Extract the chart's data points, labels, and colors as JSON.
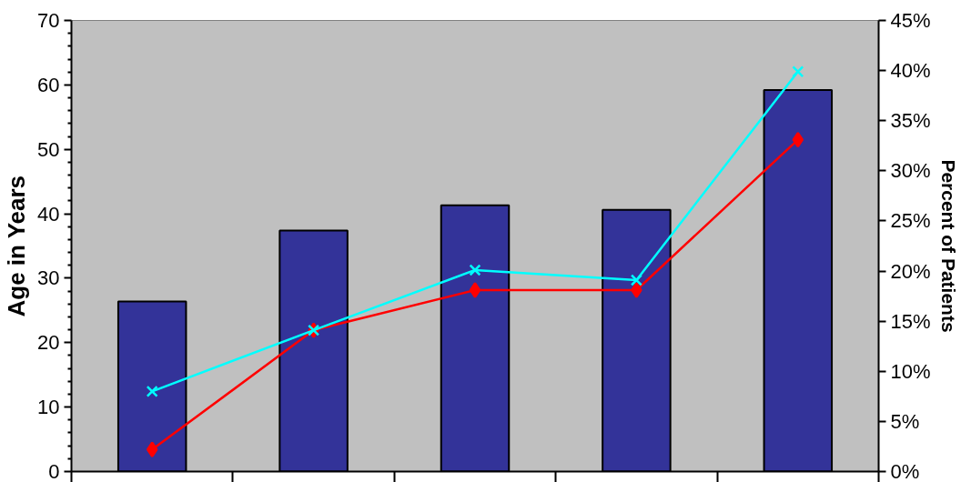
{
  "chart_data": {
    "type": "bar",
    "ylabel": "Age in Years",
    "y2label": "Percent of Patients",
    "categories": [
      null,
      null,
      null,
      null,
      null
    ],
    "ylim": [
      0,
      70
    ],
    "yticks": [
      0,
      10,
      20,
      30,
      40,
      50,
      60,
      70
    ],
    "y2lim": [
      0,
      45
    ],
    "y2ticks": [
      {
        "value": 0,
        "label": "0%"
      },
      {
        "value": 5,
        "label": "5%"
      },
      {
        "value": 10,
        "label": "10%"
      },
      {
        "value": 15,
        "label": "15%"
      },
      {
        "value": 20,
        "label": "20%"
      },
      {
        "value": 25,
        "label": "25%"
      },
      {
        "value": 30,
        "label": "30%"
      },
      {
        "value": 35,
        "label": "35%"
      },
      {
        "value": 40,
        "label": "40%"
      },
      {
        "value": 45,
        "label": "45%"
      }
    ],
    "tick_labels": "y",
    "grid": false,
    "series": [
      {
        "color": "#333399",
        "values": [
          26.4,
          37.4,
          41.3,
          40.6,
          59.2
        ]
      },
      {
        "type": "line",
        "axis": "y2",
        "color": "#ff0000",
        "marker": "diamond",
        "line_style": "solid",
        "values": [
          2.2,
          14.1,
          18.1,
          18.1,
          33.1
        ]
      },
      {
        "type": "line",
        "axis": "y2",
        "color": "#00ffff",
        "marker": "cross",
        "line_style": "solid",
        "values": [
          8.0,
          14.1,
          20.1,
          19.1,
          39.9
        ]
      }
    ]
  }
}
